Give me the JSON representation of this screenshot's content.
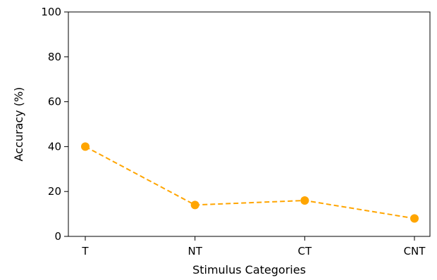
{
  "chart_data": {
    "type": "line",
    "categories": [
      "T",
      "NT",
      "CT",
      "CNT"
    ],
    "series": [
      {
        "values": [
          40,
          14,
          16,
          8
        ],
        "color": "#ffa500",
        "line_style": "dashed",
        "marker": "circle"
      }
    ],
    "title": "",
    "xlabel": "Stimulus Categories",
    "ylabel": "Accuracy (%)",
    "ylim": [
      0,
      100
    ],
    "yticks": [
      0,
      20,
      40,
      60,
      80,
      100
    ],
    "grid": false,
    "legend": "none"
  }
}
